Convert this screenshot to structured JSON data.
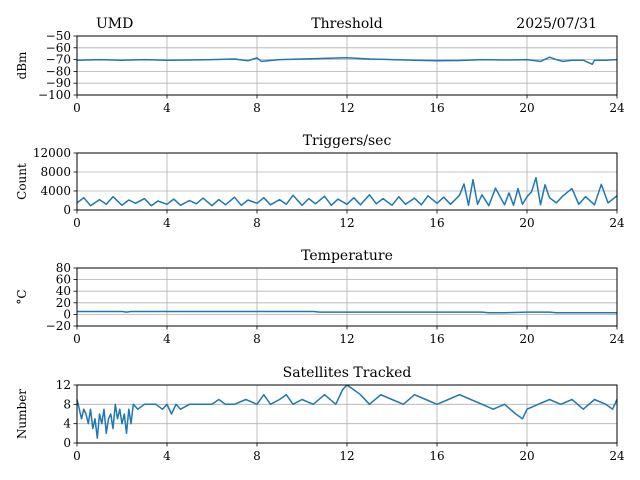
{
  "header": {
    "left": "UMD",
    "right": "2025/07/31"
  },
  "colors": {
    "line": "#1f77b4",
    "grid": "#b0b0b0"
  },
  "chart_data": [
    {
      "type": "line",
      "title": "Threshold",
      "ylabel": "dBm",
      "xlim": [
        0,
        24
      ],
      "ylim": [
        -100,
        -50
      ],
      "xticks": [
        0,
        4,
        8,
        12,
        16,
        20,
        24
      ],
      "yticks": [
        -100,
        -90,
        -80,
        -70,
        -60,
        -50
      ],
      "ytick_labels": [
        "−100",
        "−90",
        "−80",
        "−70",
        "−60",
        "−50"
      ],
      "grid": true,
      "series": [
        {
          "x": [
            0,
            1,
            2,
            3,
            4,
            5,
            6,
            7,
            7.6,
            8,
            8.2,
            9,
            10,
            11,
            12,
            13,
            14,
            15,
            16,
            17,
            18,
            19,
            20,
            20.6,
            21,
            21.3,
            21.6,
            22,
            22.5,
            22.9,
            23,
            23.5,
            24
          ],
          "values": [
            -70.5,
            -70,
            -70.5,
            -70,
            -70.5,
            -70.3,
            -70,
            -69.5,
            -71,
            -68.5,
            -71.5,
            -70,
            -69.5,
            -69,
            -68.5,
            -69.5,
            -70,
            -70.5,
            -71,
            -70.8,
            -70,
            -70.3,
            -70,
            -71.5,
            -68,
            -70,
            -71.5,
            -70.5,
            -70.5,
            -74,
            -70.5,
            -70.5,
            -70
          ]
        }
      ]
    },
    {
      "type": "line",
      "title": "Triggers/sec",
      "ylabel": "Count",
      "xlim": [
        0,
        24
      ],
      "ylim": [
        0,
        12000
      ],
      "xticks": [
        0,
        4,
        8,
        12,
        16,
        20,
        24
      ],
      "yticks": [
        0,
        4000,
        8000,
        12000
      ],
      "ytick_labels": [
        "0",
        "4000",
        "8000",
        "12000"
      ],
      "grid": true,
      "series": [
        {
          "x": [
            0,
            0.3,
            0.6,
            1,
            1.3,
            1.6,
            2,
            2.3,
            2.6,
            3,
            3.3,
            3.6,
            4,
            4.3,
            4.6,
            5,
            5.3,
            5.6,
            6,
            6.3,
            6.6,
            7,
            7.3,
            7.6,
            8,
            8.3,
            8.6,
            9,
            9.3,
            9.6,
            10,
            10.3,
            10.6,
            11,
            11.3,
            11.6,
            12,
            12.3,
            12.6,
            13,
            13.3,
            13.6,
            14,
            14.3,
            14.6,
            15,
            15.3,
            15.6,
            16,
            16.3,
            16.6,
            17,
            17.2,
            17.4,
            17.6,
            17.8,
            18,
            18.3,
            18.6,
            19,
            19.2,
            19.4,
            19.6,
            19.8,
            20,
            20.2,
            20.4,
            20.6,
            20.8,
            21,
            21.3,
            21.6,
            22,
            22.3,
            22.6,
            23,
            23.3,
            23.6,
            24
          ],
          "values": [
            1500,
            2600,
            900,
            2200,
            1200,
            2800,
            1000,
            2100,
            1400,
            2400,
            900,
            1900,
            1200,
            2300,
            1000,
            2000,
            1300,
            2500,
            900,
            2200,
            1100,
            2700,
            1000,
            2100,
            1400,
            2600,
            1100,
            2200,
            1200,
            3100,
            1000,
            2400,
            1300,
            2900,
            1000,
            2300,
            1200,
            2600,
            1100,
            3200,
            1300,
            2400,
            1000,
            2800,
            1200,
            2500,
            1100,
            3000,
            1400,
            2700,
            1200,
            3100,
            5500,
            1000,
            6400,
            1200,
            3200,
            900,
            4600,
            1100,
            3600,
            1000,
            4500,
            1200,
            2800,
            3800,
            6800,
            1100,
            5300,
            2600,
            1500,
            3000,
            4500,
            1200,
            2800,
            1100,
            5400,
            1500,
            3000
          ]
        }
      ]
    },
    {
      "type": "line",
      "title": "Temperature",
      "ylabel": "°C",
      "xlim": [
        0,
        24
      ],
      "ylim": [
        -20,
        80
      ],
      "xticks": [
        0,
        4,
        8,
        12,
        16,
        20,
        24
      ],
      "yticks": [
        -20,
        0,
        20,
        40,
        60,
        80
      ],
      "ytick_labels": [
        "−20",
        "0",
        "20",
        "40",
        "60",
        "80"
      ],
      "grid": true,
      "series": [
        {
          "x": [
            0,
            2,
            2.2,
            2.4,
            4,
            8,
            10.5,
            10.8,
            12,
            16,
            18,
            18.3,
            19,
            20,
            21,
            21.3,
            24
          ],
          "values": [
            5,
            5,
            4,
            5,
            5,
            5,
            5,
            4,
            4,
            4,
            4,
            3,
            3,
            4,
            4,
            3,
            3
          ]
        }
      ]
    },
    {
      "type": "line",
      "title": "Satellites Tracked",
      "ylabel": "Number",
      "xlim": [
        0,
        24
      ],
      "ylim": [
        0,
        12
      ],
      "xticks": [
        0,
        4,
        8,
        12,
        16,
        20,
        24
      ],
      "yticks": [
        0,
        4,
        8,
        12
      ],
      "ytick_labels": [
        "0",
        "4",
        "8",
        "12"
      ],
      "grid": true,
      "series": [
        {
          "x": [
            0,
            0.1,
            0.2,
            0.3,
            0.4,
            0.5,
            0.6,
            0.7,
            0.8,
            0.9,
            1,
            1.1,
            1.2,
            1.3,
            1.4,
            1.5,
            1.6,
            1.7,
            1.8,
            1.9,
            2,
            2.1,
            2.2,
            2.3,
            2.4,
            2.5,
            2.7,
            3,
            3.5,
            3.8,
            4,
            4.2,
            4.4,
            4.6,
            5,
            5.5,
            6,
            6.3,
            6.6,
            7,
            7.5,
            8,
            8.3,
            8.6,
            9,
            9.3,
            9.6,
            10,
            10.5,
            11,
            11.5,
            11.8,
            12,
            12.3,
            12.6,
            13,
            13.5,
            14,
            14.5,
            15,
            15.5,
            16,
            16.5,
            17,
            17.5,
            18,
            18.5,
            19,
            19.5,
            19.8,
            20,
            20.5,
            21,
            21.5,
            22,
            22.5,
            23,
            23.5,
            23.8,
            24
          ],
          "values": [
            9,
            7,
            5,
            7,
            6,
            4,
            7,
            3,
            5,
            1,
            6,
            4,
            7,
            2,
            5,
            6,
            3,
            8,
            5,
            7,
            4,
            6,
            2,
            7,
            4,
            8,
            7,
            8,
            8,
            7,
            8,
            6,
            8,
            7,
            8,
            8,
            8,
            9,
            8,
            8,
            9,
            8,
            10,
            8,
            9,
            10,
            8,
            9,
            8,
            10,
            8,
            11,
            12,
            11,
            10,
            8,
            10,
            9,
            8,
            10,
            9,
            8,
            9,
            10,
            9,
            8,
            7,
            8,
            6,
            5,
            7,
            8,
            9,
            8,
            9,
            7,
            9,
            8,
            7,
            9
          ]
        }
      ]
    }
  ]
}
